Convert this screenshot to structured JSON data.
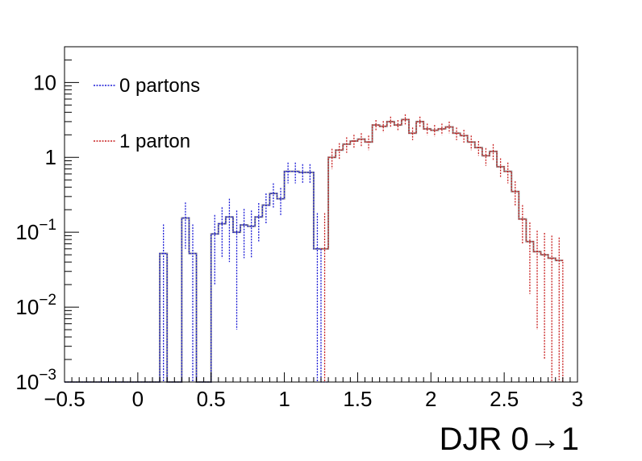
{
  "chart_data": {
    "type": "line",
    "xlabel": "DJR 0→1",
    "ylabel": "",
    "xlim": [
      -0.5,
      3.0
    ],
    "ylim": [
      0.001,
      30
    ],
    "y_scale": "log",
    "grid": false,
    "legend_position": "top-left",
    "bin_edges": [
      -0.5,
      -0.45,
      -0.4,
      -0.35,
      -0.3,
      -0.25,
      -0.2,
      -0.15,
      -0.1,
      -0.05,
      0.0,
      0.05,
      0.1,
      0.15,
      0.2,
      0.25,
      0.3,
      0.35,
      0.4,
      0.45,
      0.5,
      0.55,
      0.6,
      0.65,
      0.7,
      0.75,
      0.8,
      0.85,
      0.9,
      0.95,
      1.0,
      1.05,
      1.1,
      1.15,
      1.2,
      1.25,
      1.3,
      1.35,
      1.4,
      1.45,
      1.5,
      1.55,
      1.6,
      1.65,
      1.7,
      1.75,
      1.8,
      1.85,
      1.9,
      1.95,
      2.0,
      2.05,
      2.1,
      2.15,
      2.2,
      2.25,
      2.3,
      2.35,
      2.4,
      2.45,
      2.5,
      2.55,
      2.6,
      2.65,
      2.7,
      2.75,
      2.8,
      2.85,
      2.9,
      2.95,
      3.0
    ],
    "x_ticks": [
      {
        "value": -0.5,
        "label": "−0.5"
      },
      {
        "value": 0,
        "label": "0"
      },
      {
        "value": 0.5,
        "label": "0.5"
      },
      {
        "value": 1,
        "label": "1"
      },
      {
        "value": 1.5,
        "label": "1.5"
      },
      {
        "value": 2,
        "label": "2"
      },
      {
        "value": 2.5,
        "label": "2.5"
      },
      {
        "value": 3,
        "label": "3"
      }
    ],
    "y_ticks": [
      {
        "value": 0.001,
        "base": "10",
        "exp": "−3"
      },
      {
        "value": 0.01,
        "base": "10",
        "exp": "−2"
      },
      {
        "value": 0.1,
        "base": "10",
        "exp": "−1"
      },
      {
        "value": 1,
        "base": "1",
        "exp": ""
      },
      {
        "value": 10,
        "base": "10",
        "exp": ""
      }
    ],
    "series": [
      {
        "name": "0 partons",
        "color": "#1a1ad6",
        "style": "dotted",
        "values": [
          0,
          0,
          0,
          0,
          0,
          0,
          0,
          0,
          0,
          0,
          0,
          0,
          0,
          0.052,
          0,
          0,
          0.155,
          0.052,
          0,
          0,
          0.095,
          0.13,
          0.16,
          0.1,
          0.125,
          0.12,
          0.16,
          0.23,
          0.33,
          0.28,
          0.65,
          0.65,
          0.63,
          0.63,
          0.06,
          0
        ],
        "errors": [
          0,
          0,
          0,
          0,
          0,
          0,
          0,
          0,
          0,
          0,
          0,
          0,
          0,
          0.075,
          0,
          0,
          0.095,
          0.075,
          0,
          0,
          0.075,
          0.085,
          0.12,
          0.095,
          0.08,
          0.075,
          0.085,
          0.1,
          0.12,
          0.11,
          0.2,
          0.2,
          0.18,
          0.18,
          0.12,
          0
        ]
      },
      {
        "name": "1 parton",
        "color": "#c82020",
        "style": "dotted",
        "start_bin": 35,
        "values": [
          0.06,
          1.0,
          1.25,
          1.5,
          1.65,
          1.75,
          1.6,
          2.7,
          2.6,
          3.0,
          2.7,
          3.2,
          2.1,
          3.0,
          2.4,
          2.3,
          2.4,
          2.55,
          2.1,
          1.95,
          1.6,
          1.35,
          1.05,
          1.2,
          0.75,
          0.65,
          0.35,
          0.15,
          0.075,
          0.055,
          0.05,
          0.045,
          0.042
        ],
        "errors": [
          0.12,
          0.3,
          0.3,
          0.35,
          0.35,
          0.35,
          0.35,
          0.45,
          0.45,
          0.5,
          0.45,
          0.55,
          0.4,
          0.5,
          0.42,
          0.4,
          0.42,
          0.45,
          0.4,
          0.38,
          0.35,
          0.3,
          0.28,
          0.3,
          0.22,
          0.2,
          0.13,
          0.08,
          0.06,
          0.05,
          0.048,
          0.045,
          0.043
        ]
      }
    ]
  },
  "legend": {
    "items": [
      {
        "label": "0 partons",
        "color": "#1a1ad6"
      },
      {
        "label": "1 parton",
        "color": "#c82020"
      }
    ]
  },
  "colors": {
    "axis": "#000000",
    "total": "#8c8c8c"
  }
}
